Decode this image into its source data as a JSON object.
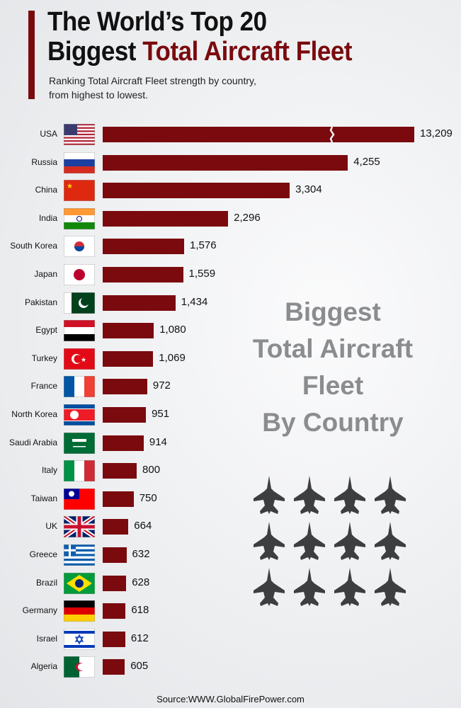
{
  "header": {
    "title_line1": "The World’s Top 20",
    "title_line2_black": "Biggest",
    "title_line2_red": "Total Aircraft Fleet",
    "subtitle_line1": "Ranking Total Aircraft Fleet strength by country,",
    "subtitle_line2": "from highest to lowest."
  },
  "side_text": [
    "Biggest",
    "Total Aircraft",
    "Fleet",
    "By Country"
  ],
  "source": "Source:WWW.GlobalFirePower.com",
  "colors": {
    "bar": "#7a0a0e",
    "jet": "#3d3e40"
  },
  "chart_data": {
    "type": "bar",
    "orientation": "horizontal",
    "title": "The World’s Top 20 Biggest Total Aircraft Fleet",
    "xlabel": "",
    "ylabel": "",
    "axis_break_on": "USA",
    "categories": [
      "USA",
      "Russia",
      "China",
      "India",
      "South Korea",
      "Japan",
      "Pakistan",
      "Egypt",
      "Turkey",
      "France",
      "North Korea",
      "Saudi Arabia",
      "Italy",
      "Taiwan",
      "UK",
      "Greece",
      "Brazil",
      "Germany",
      "Israel",
      "Algeria"
    ],
    "values": [
      13209,
      4255,
      3304,
      2296,
      1576,
      1559,
      1434,
      1080,
      1069,
      972,
      951,
      914,
      800,
      750,
      664,
      632,
      628,
      618,
      612,
      605
    ],
    "labels": [
      "13,209",
      "4,255",
      "3,304",
      "2,296",
      "1,576",
      "1,559",
      "1,434",
      "1,080",
      "1,069",
      "972",
      "951",
      "914",
      "800",
      "750",
      "664",
      "632",
      "628",
      "618",
      "612",
      "605"
    ]
  }
}
